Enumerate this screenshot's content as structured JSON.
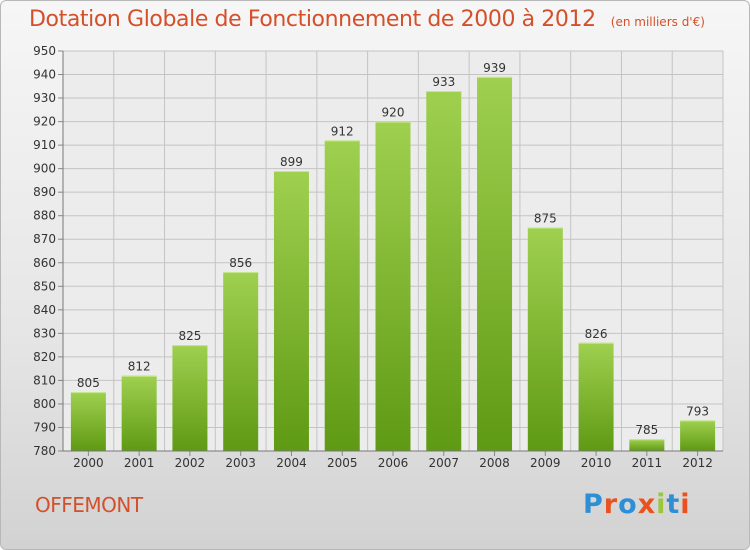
{
  "header": {
    "title": "Dotation Globale de Fonctionnement de 2000 à 2012",
    "subtitle": "(en milliers d'€)"
  },
  "footer": {
    "commune": "OFFEMONT",
    "logo": "Proxiti",
    "logo_colors": [
      "#2f8fd6",
      "#e9521f",
      "#2f8fd6",
      "#e9521f",
      "#9bc73b",
      "#2f8fd6",
      "#e9521f"
    ]
  },
  "chart_data": {
    "type": "bar",
    "categories": [
      "2000",
      "2001",
      "2002",
      "2003",
      "2004",
      "2005",
      "2006",
      "2007",
      "2008",
      "2009",
      "2010",
      "2011",
      "2012"
    ],
    "values": [
      805,
      812,
      825,
      856,
      899,
      912,
      920,
      933,
      939,
      875,
      826,
      785,
      793
    ],
    "value_labels": [
      "805",
      "812",
      "825",
      "856",
      "899",
      "912",
      "920",
      "933",
      "939",
      "875",
      "826",
      "785",
      "793"
    ],
    "ylim": [
      780,
      950
    ],
    "yticks": [
      "780",
      "790",
      "800",
      "810",
      "820",
      "830",
      "840",
      "850",
      "860",
      "870",
      "880",
      "890",
      "900",
      "910",
      "920",
      "930",
      "940",
      "950"
    ],
    "grid": true,
    "bar_color_top": "#9fd04f",
    "bar_color_bottom": "#5f9a14"
  }
}
